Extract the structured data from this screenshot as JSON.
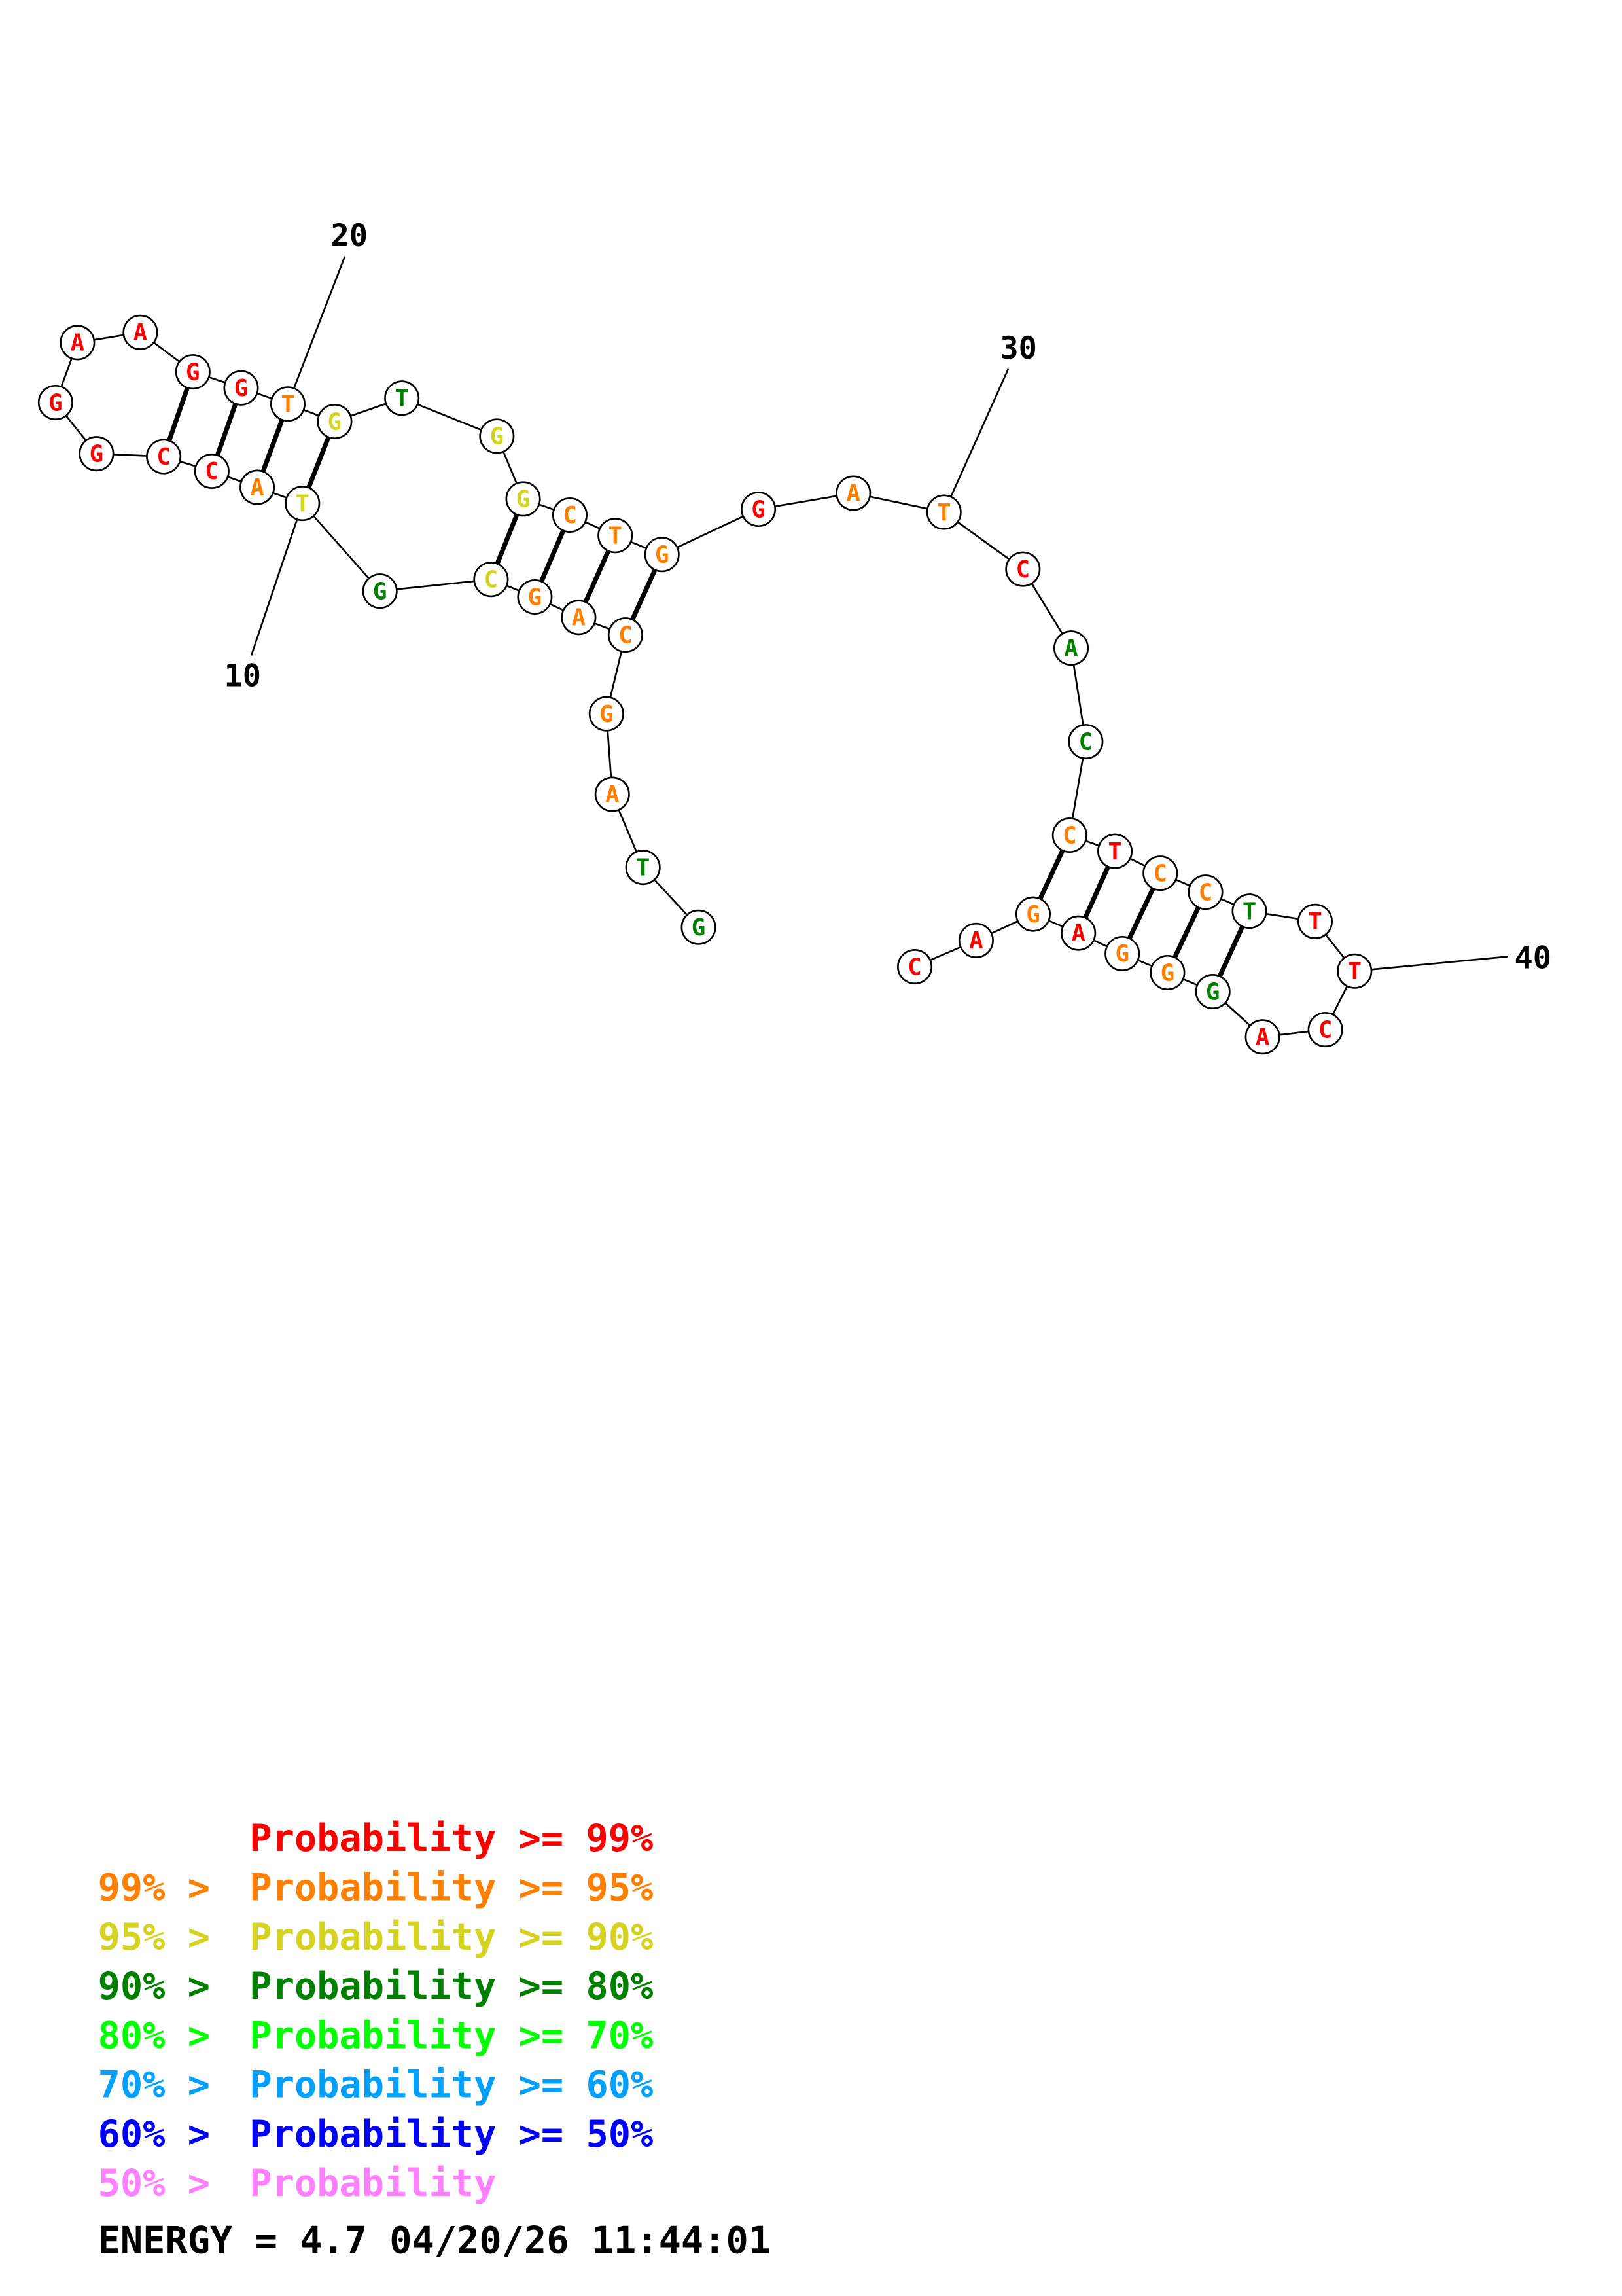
{
  "colors": {
    "p99": "#ff0000",
    "p95": "#ff8000",
    "p90": "#d4d420",
    "p80": "#008000",
    "p70": "#00ff00",
    "p60": "#00a0ff",
    "p50": "#0000ff",
    "below50": "#ff80ff",
    "text": "#000000"
  },
  "sequence": [
    {
      "i": 1,
      "base": "G",
      "prob": "p80"
    },
    {
      "i": 2,
      "base": "T",
      "prob": "p80"
    },
    {
      "i": 3,
      "base": "A",
      "prob": "p95"
    },
    {
      "i": 4,
      "base": "G",
      "prob": "p95"
    },
    {
      "i": 5,
      "base": "C",
      "prob": "p95"
    },
    {
      "i": 6,
      "base": "A",
      "prob": "p95"
    },
    {
      "i": 7,
      "base": "G",
      "prob": "p95"
    },
    {
      "i": 8,
      "base": "C",
      "prob": "p90"
    },
    {
      "i": 9,
      "base": "G",
      "prob": "p80"
    },
    {
      "i": 10,
      "base": "T",
      "prob": "p90"
    },
    {
      "i": 11,
      "base": "A",
      "prob": "p95"
    },
    {
      "i": 12,
      "base": "C",
      "prob": "p99"
    },
    {
      "i": 13,
      "base": "C",
      "prob": "p99"
    },
    {
      "i": 14,
      "base": "G",
      "prob": "p99"
    },
    {
      "i": 15,
      "base": "G",
      "prob": "p99"
    },
    {
      "i": 16,
      "base": "A",
      "prob": "p99"
    },
    {
      "i": 17,
      "base": "A",
      "prob": "p99"
    },
    {
      "i": 18,
      "base": "G",
      "prob": "p99"
    },
    {
      "i": 19,
      "base": "G",
      "prob": "p99"
    },
    {
      "i": 20,
      "base": "T",
      "prob": "p95"
    },
    {
      "i": 21,
      "base": "G",
      "prob": "p90"
    },
    {
      "i": 22,
      "base": "T",
      "prob": "p80"
    },
    {
      "i": 23,
      "base": "G",
      "prob": "p90"
    },
    {
      "i": 24,
      "base": "G",
      "prob": "p90"
    },
    {
      "i": 25,
      "base": "C",
      "prob": "p95"
    },
    {
      "i": 26,
      "base": "T",
      "prob": "p95"
    },
    {
      "i": 27,
      "base": "G",
      "prob": "p95"
    },
    {
      "i": 28,
      "base": "G",
      "prob": "p99"
    },
    {
      "i": 29,
      "base": "A",
      "prob": "p95"
    },
    {
      "i": 30,
      "base": "T",
      "prob": "p95"
    },
    {
      "i": 31,
      "base": "C",
      "prob": "p99"
    },
    {
      "i": 32,
      "base": "A",
      "prob": "p80"
    },
    {
      "i": 33,
      "base": "C",
      "prob": "p80"
    },
    {
      "i": 34,
      "base": "C",
      "prob": "p95"
    },
    {
      "i": 35,
      "base": "T",
      "prob": "p99"
    },
    {
      "i": 36,
      "base": "C",
      "prob": "p95"
    },
    {
      "i": 37,
      "base": "C",
      "prob": "p95"
    },
    {
      "i": 38,
      "base": "T",
      "prob": "p80"
    },
    {
      "i": 39,
      "base": "T",
      "prob": "p99"
    },
    {
      "i": 40,
      "base": "T",
      "prob": "p99"
    },
    {
      "i": 41,
      "base": "C",
      "prob": "p99"
    },
    {
      "i": 42,
      "base": "A",
      "prob": "p99"
    },
    {
      "i": 43,
      "base": "G",
      "prob": "p80"
    },
    {
      "i": 44,
      "base": "G",
      "prob": "p95"
    },
    {
      "i": 45,
      "base": "G",
      "prob": "p95"
    },
    {
      "i": 46,
      "base": "A",
      "prob": "p99"
    },
    {
      "i": 47,
      "base": "G",
      "prob": "p95"
    },
    {
      "i": 48,
      "base": "A",
      "prob": "p99"
    },
    {
      "i": 49,
      "base": "C",
      "prob": "p99"
    }
  ],
  "pairs": [
    [
      5,
      27
    ],
    [
      6,
      26
    ],
    [
      7,
      25
    ],
    [
      8,
      24
    ],
    [
      10,
      21
    ],
    [
      11,
      20
    ],
    [
      12,
      19
    ],
    [
      13,
      18
    ],
    [
      34,
      47
    ],
    [
      35,
      46
    ],
    [
      36,
      45
    ],
    [
      37,
      44
    ],
    [
      38,
      43
    ]
  ],
  "tick_labels": [
    "10",
    "20",
    "30",
    "40"
  ],
  "legend": [
    {
      "prefix": "    ",
      "text": "Probability >= 99%",
      "color": "p99"
    },
    {
      "prefix": "99% > ",
      "text": "Probability >= 95%",
      "color": "p95"
    },
    {
      "prefix": "95% > ",
      "text": "Probability >= 90%",
      "color": "p90"
    },
    {
      "prefix": "90% > ",
      "text": "Probability >= 80%",
      "color": "p80"
    },
    {
      "prefix": "80% > ",
      "text": "Probability >= 70%",
      "color": "p70"
    },
    {
      "prefix": "70% > ",
      "text": "Probability >= 60%",
      "color": "p60"
    },
    {
      "prefix": "60% > ",
      "text": "Probability >= 50%",
      "color": "p50"
    },
    {
      "prefix": "50% > ",
      "text": "Probability",
      "color": "below50"
    }
  ],
  "energy_line": "ENERGY = 4.7  04/20/26 11:44:01"
}
